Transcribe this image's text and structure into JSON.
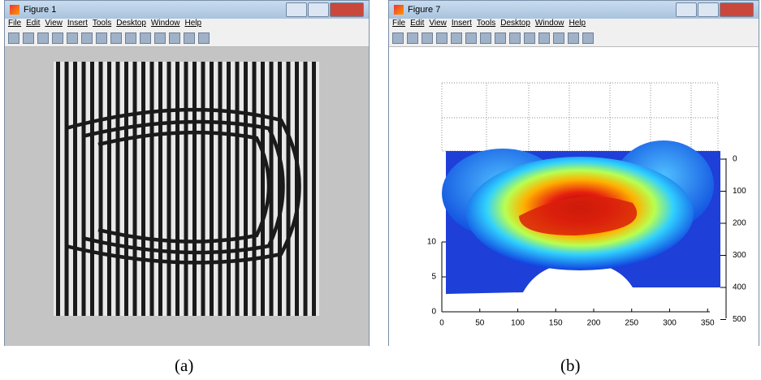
{
  "windows": [
    {
      "title": "Figure 1",
      "menu": [
        "File",
        "Edit",
        "View",
        "Insert",
        "Tools",
        "Desktop",
        "Window",
        "Help"
      ],
      "caption": "(a)"
    },
    {
      "title": "Figure 7",
      "menu": [
        "File",
        "Edit",
        "View",
        "Insert",
        "Tools",
        "Desktop",
        "Window",
        "Help"
      ],
      "caption": "(b)",
      "axes": {
        "xticks": [
          0,
          50,
          100,
          150,
          200,
          250,
          300,
          350
        ],
        "zticks": [
          0,
          5,
          10
        ],
        "yticks": [
          0,
          100,
          200,
          300,
          400,
          500
        ]
      }
    }
  ]
}
